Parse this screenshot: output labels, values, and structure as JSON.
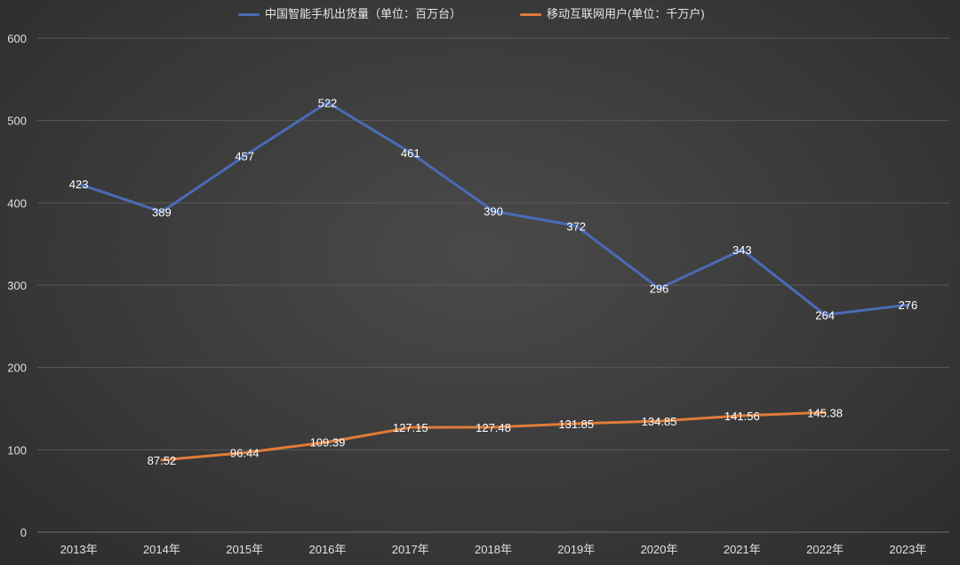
{
  "chart_data": {
    "type": "line",
    "categories": [
      "2013年",
      "2014年",
      "2015年",
      "2016年",
      "2017年",
      "2018年",
      "2019年",
      "2020年",
      "2021年",
      "2022年",
      "2023年"
    ],
    "series": [
      {
        "name": "中国智能手机出货量（单位：百万台）",
        "color": "#4a6bb5",
        "values": [
          423,
          389,
          457,
          522,
          461,
          390,
          372,
          296,
          343,
          264,
          276
        ],
        "labels": [
          "423",
          "389",
          "457",
          "522",
          "461",
          "390",
          "372",
          "296",
          "343",
          "264",
          "276"
        ]
      },
      {
        "name": "移动互联网用户(单位：千万户)",
        "color": "#e07b39",
        "values": [
          null,
          87.52,
          96.44,
          109.39,
          127.15,
          127.48,
          131.85,
          134.85,
          141.56,
          145.38,
          null
        ],
        "labels": [
          null,
          "87.52",
          "96.44",
          "109.39",
          "127.15",
          "127.48",
          "131.85",
          "134.85",
          "141.56",
          "145.38",
          null
        ]
      }
    ],
    "yticks": [
      "0",
      "100",
      "200",
      "300",
      "400",
      "500",
      "600"
    ],
    "ylim": [
      0,
      600
    ],
    "grid": true,
    "legend": "top-center",
    "xlabel": "",
    "ylabel": "",
    "title": ""
  }
}
